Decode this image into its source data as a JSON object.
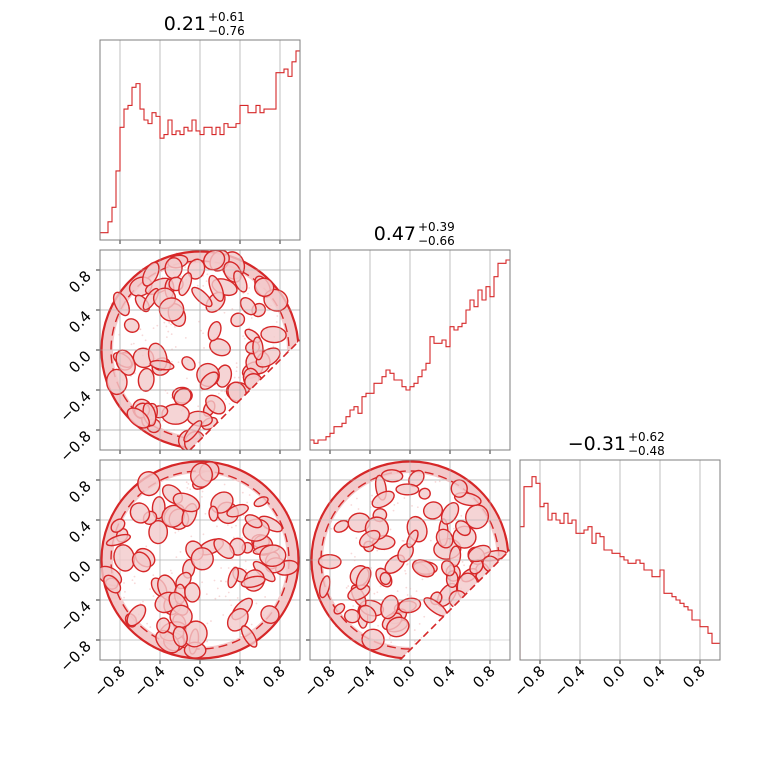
{
  "chart_data": {
    "type": "corner",
    "grid": true,
    "color": "#d62728",
    "fill_color": "#f3c9ca",
    "tick_values": [
      -0.8,
      -0.4,
      0.0,
      0.4,
      0.8
    ],
    "tick_labels": [
      "−0.8",
      "−0.4",
      "0.0",
      "0.4",
      "0.8"
    ],
    "range": [
      -1,
      1
    ],
    "titles": [
      {
        "median": "0.21",
        "plus": "+0.61",
        "minus": "−0.76"
      },
      {
        "median": "0.47",
        "plus": "+0.39",
        "minus": "−0.66"
      },
      {
        "median": "−0.31",
        "plus": "+0.62",
        "minus": "−0.48"
      }
    ],
    "histograms": [
      {
        "parameter": 0,
        "bin_edges_range": [
          -1,
          1
        ],
        "counts": [
          2,
          2,
          5,
          9,
          19,
          31,
          36,
          37,
          42,
          43,
          36,
          33,
          32,
          35,
          34,
          28,
          29,
          33,
          29,
          30,
          29,
          31,
          30,
          33,
          30,
          29,
          31,
          31,
          29,
          31,
          29,
          32,
          31,
          31,
          32,
          37,
          37,
          35,
          35,
          37,
          35,
          36,
          36,
          36,
          46,
          46,
          47,
          45,
          49,
          52
        ],
        "max": 55
      },
      {
        "parameter": 1,
        "bin_edges_range": [
          -1,
          1
        ],
        "counts": [
          3,
          2,
          3,
          3,
          4,
          5,
          7,
          7,
          8,
          10,
          12,
          13,
          11,
          16,
          17,
          17,
          20,
          20,
          22,
          24,
          23,
          21,
          21,
          19,
          18,
          19,
          20,
          22,
          24,
          26,
          34,
          32,
          32,
          33,
          31,
          37,
          36,
          37,
          38,
          42,
          45,
          43,
          48,
          45,
          49,
          46,
          52,
          56,
          56,
          57
        ],
        "max": 60
      },
      {
        "parameter": 2,
        "bin_edges_range": [
          -1,
          1
        ],
        "counts": [
          40,
          52,
          52,
          55,
          53,
          46,
          47,
          42,
          44,
          42,
          41,
          44,
          41,
          42,
          38,
          38,
          39,
          40,
          35,
          38,
          37,
          33,
          33,
          32,
          32,
          31,
          30,
          29,
          29,
          30,
          29,
          27,
          27,
          25,
          25,
          27,
          20,
          20,
          19,
          18,
          17,
          16,
          15,
          12,
          12,
          10,
          10,
          8,
          5,
          5
        ],
        "max": 60
      }
    ],
    "joint": [
      {
        "x_param": 0,
        "y_param": 1,
        "shape": "disk truncated at y = x - 0.9"
      },
      {
        "x_param": 0,
        "y_param": 2,
        "shape": "disk"
      },
      {
        "x_param": 1,
        "y_param": 2,
        "shape": "disk truncated at y = x - 0.9"
      }
    ]
  }
}
